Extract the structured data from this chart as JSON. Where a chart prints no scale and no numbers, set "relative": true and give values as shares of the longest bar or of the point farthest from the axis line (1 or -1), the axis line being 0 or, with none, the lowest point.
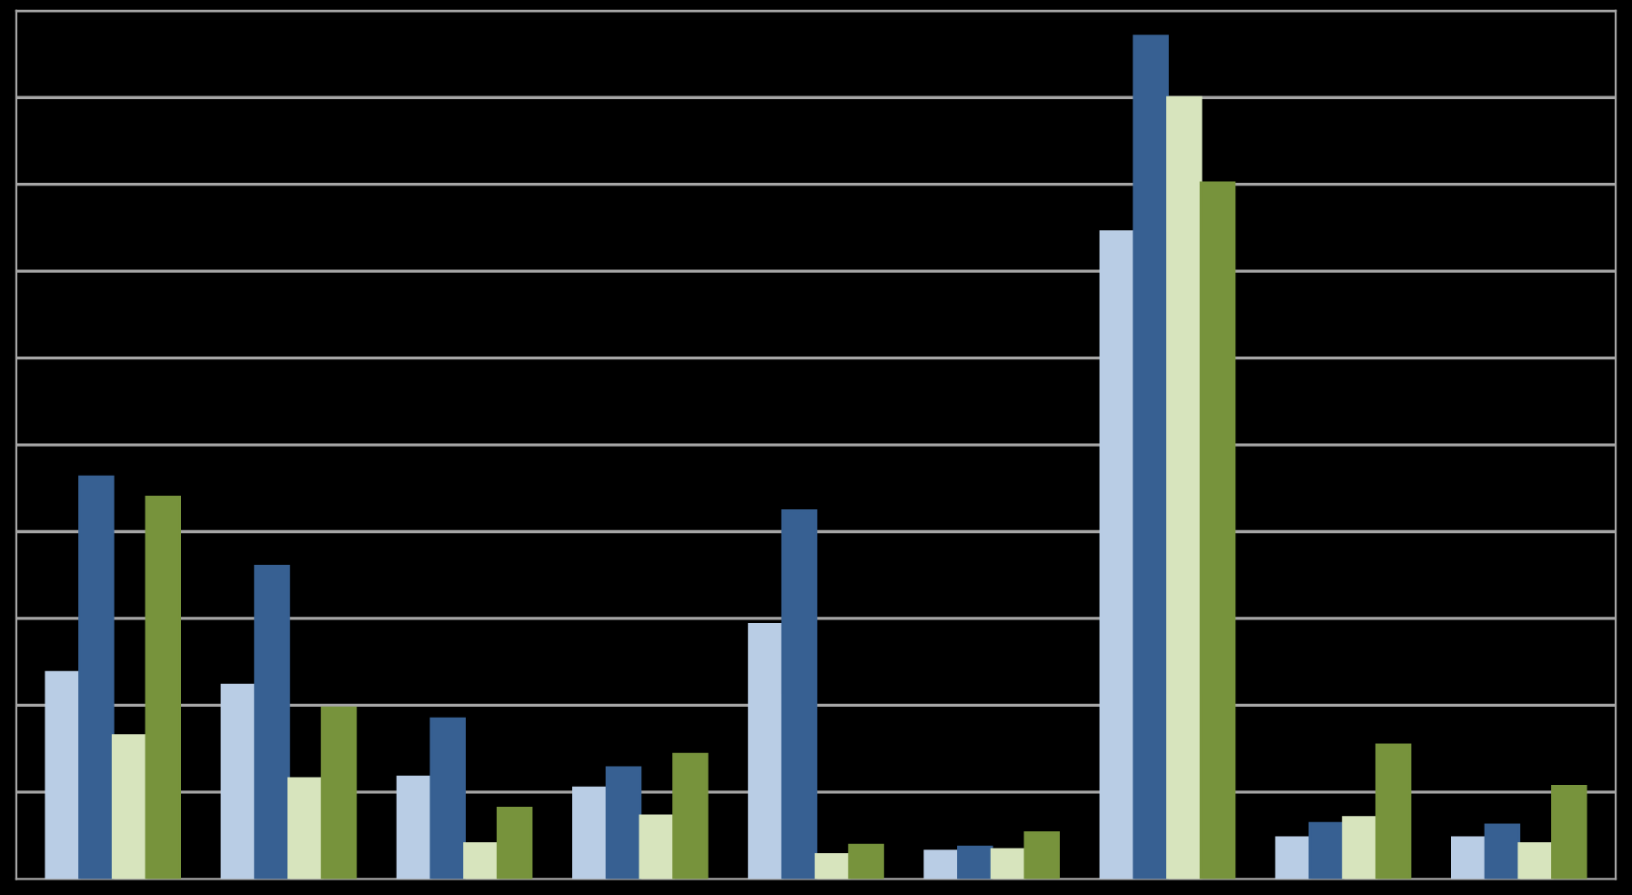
{
  "chart_data": {
    "type": "bar",
    "relative": true,
    "grid": "y",
    "categories": [
      null,
      null,
      null,
      null,
      null,
      null,
      null,
      null,
      null
    ],
    "series": [
      {
        "color": "#b9cde5",
        "values": [
          0.245,
          0.23,
          0.121,
          0.108,
          0.302,
          0.033,
          0.768,
          0.049,
          0.049
        ]
      },
      {
        "color": "#376092",
        "values": [
          0.477,
          0.371,
          0.19,
          0.132,
          0.437,
          0.038,
          1,
          0.066,
          0.064
        ]
      },
      {
        "color": "#d7e4bd",
        "values": [
          0.17,
          0.119,
          0.042,
          0.075,
          0.029,
          0.035,
          0.927,
          0.073,
          0.042
        ]
      },
      {
        "color": "#77933c",
        "values": [
          0.453,
          0.203,
          0.084,
          0.148,
          0.04,
          0.055,
          0.826,
          0.159,
          0.11
        ]
      }
    ]
  }
}
